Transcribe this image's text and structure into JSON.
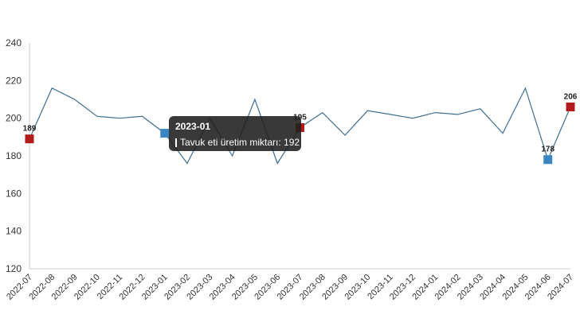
{
  "chart_data": {
    "type": "line",
    "title": "",
    "xlabel": "",
    "ylabel": "",
    "ylim": [
      120,
      240
    ],
    "yticks": [
      120,
      140,
      160,
      180,
      200,
      220,
      240
    ],
    "grid": false,
    "series": [
      {
        "name": "Tavuk eti üretim miktarı",
        "x": [
          "2022-07",
          "2022-08",
          "2022-09",
          "2022-10",
          "2022-11",
          "2022-12",
          "2023-01",
          "2023-02",
          "2023-03",
          "2023-04",
          "2023-05",
          "2023-06",
          "2023-07",
          "2023-08",
          "2023-09",
          "2023-10",
          "2023-11",
          "2023-12",
          "2024-01",
          "2024-02",
          "2024-03",
          "2024-04",
          "2024-05",
          "2024-06",
          "2024-07"
        ],
        "values": [
          189,
          216,
          210,
          201,
          200,
          201,
          192,
          176,
          200,
          180,
          210,
          176,
          195,
          203,
          191,
          204,
          202,
          200,
          203,
          202,
          205,
          192,
          216,
          178,
          206
        ]
      }
    ],
    "markers": [
      {
        "x": "2022-07",
        "value": 189,
        "kind": "max",
        "label": "189"
      },
      {
        "x": "2023-01",
        "value": 192,
        "kind": "min",
        "label": ""
      },
      {
        "x": "2023-07",
        "value": 195,
        "kind": "max",
        "label": "195"
      },
      {
        "x": "2024-06",
        "value": 178,
        "kind": "min",
        "label": "178"
      },
      {
        "x": "2024-07",
        "value": 206,
        "kind": "max",
        "label": "206"
      }
    ],
    "colors": {
      "line": "#3d6e8f",
      "max_marker": "#b31b1b",
      "min_marker": "#3a85c2",
      "axis": "#cccccc"
    },
    "tooltip": {
      "title": "2023-01",
      "series_label": "Tavuk eti üretim miktarı",
      "value_text": "192"
    }
  }
}
